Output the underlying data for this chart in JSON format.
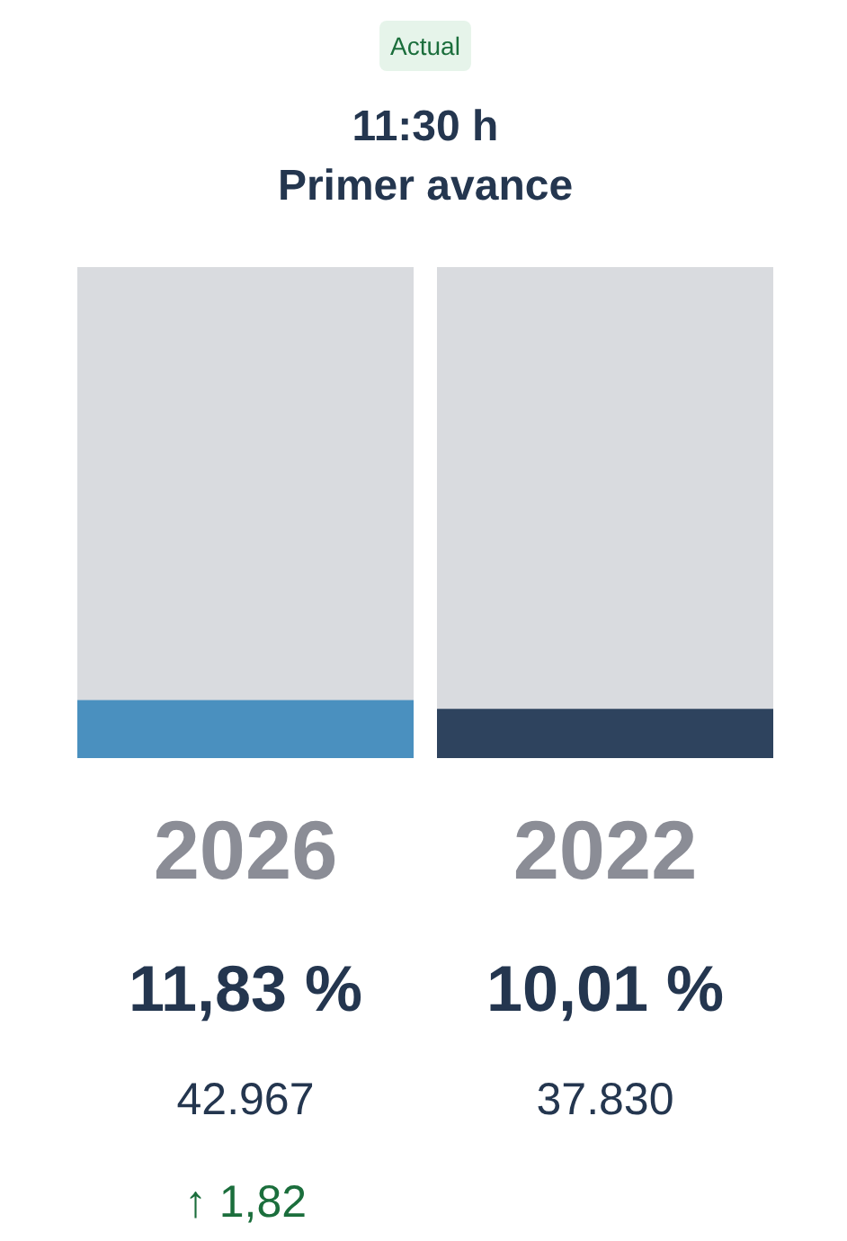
{
  "chart_data": {
    "type": "bar",
    "title": "11:30 h",
    "subtitle": "Primer avance",
    "categories": [
      "2026",
      "2022"
    ],
    "ylim": [
      0,
      100
    ],
    "tick_labels": "x",
    "grid": false,
    "series": [
      {
        "colors": [
          "#4a90bf",
          "#2e435e"
        ],
        "values": [
          11.83,
          10.01
        ],
        "value_labels": [
          "11,83 %",
          "10,01 %"
        ]
      }
    ],
    "annotations": [
      "Actual",
      "42.967",
      "37.830",
      "↑ 1,82"
    ]
  }
}
